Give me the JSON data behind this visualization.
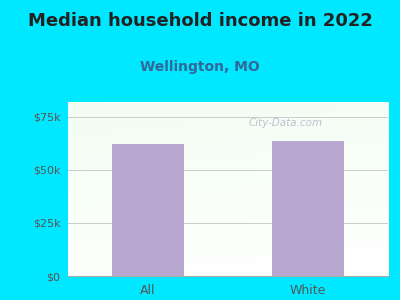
{
  "title": "Median household income in 2022",
  "subtitle": "Wellington, MO",
  "categories": [
    "All",
    "White"
  ],
  "values": [
    62000,
    63500
  ],
  "bar_color": "#b8a8d0",
  "background_color": "#00e8ff",
  "yticks": [
    0,
    25000,
    50000,
    75000
  ],
  "ytick_labels": [
    "$0",
    "$25k",
    "$50k",
    "$75k"
  ],
  "ylim": [
    0,
    82000
  ],
  "title_fontsize": 13,
  "subtitle_fontsize": 10,
  "tick_color": "#555555",
  "title_color": "#222222",
  "subtitle_color": "#336699",
  "watermark": "City-Data.com",
  "grid_color": "#cccccc"
}
